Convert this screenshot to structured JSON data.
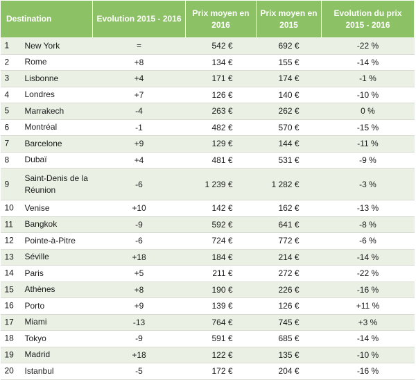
{
  "table": {
    "headers": {
      "destination": "Destination",
      "evolution": "Evolution 2015 - 2016",
      "price_2016": "Prix moyen en 2016",
      "price_2015": "Prix moyen en 2015",
      "price_evolution": "Evolution du prix 2015 - 2016"
    },
    "rows": [
      {
        "rank": "1",
        "destination": "New York",
        "evolution": "=",
        "price_2016": "542 €",
        "price_2015": "692 €",
        "price_evolution": "-22 %"
      },
      {
        "rank": "2",
        "destination": "Rome",
        "evolution": "+8",
        "price_2016": "134 €",
        "price_2015": "155 €",
        "price_evolution": "-14 %"
      },
      {
        "rank": "3",
        "destination": "Lisbonne",
        "evolution": "+4",
        "price_2016": "171 €",
        "price_2015": "174 €",
        "price_evolution": "-1 %"
      },
      {
        "rank": "4",
        "destination": "Londres",
        "evolution": "+7",
        "price_2016": "126 €",
        "price_2015": "140 €",
        "price_evolution": "-10 %"
      },
      {
        "rank": "5",
        "destination": "Marrakech",
        "evolution": "-4",
        "price_2016": "263 €",
        "price_2015": "262 €",
        "price_evolution": "0 %"
      },
      {
        "rank": "6",
        "destination": "Montréal",
        "evolution": "-1",
        "price_2016": "482 €",
        "price_2015": "570 €",
        "price_evolution": "-15 %"
      },
      {
        "rank": "7",
        "destination": "Barcelone",
        "evolution": "+9",
        "price_2016": "129 €",
        "price_2015": "144 €",
        "price_evolution": "-11 %"
      },
      {
        "rank": "8",
        "destination": "Dubaï",
        "evolution": "+4",
        "price_2016": "481 €",
        "price_2015": "531 €",
        "price_evolution": "-9 %"
      },
      {
        "rank": "9",
        "destination": "Saint-Denis de la Réunion",
        "evolution": "-6",
        "price_2016": "1 239 €",
        "price_2015": "1 282 €",
        "price_evolution": "-3 %"
      },
      {
        "rank": "10",
        "destination": "Venise",
        "evolution": "+10",
        "price_2016": "142 €",
        "price_2015": "162 €",
        "price_evolution": "-13 %"
      },
      {
        "rank": "11",
        "destination": "Bangkok",
        "evolution": "-9",
        "price_2016": "592 €",
        "price_2015": "641 €",
        "price_evolution": "-8 %"
      },
      {
        "rank": "12",
        "destination": "Pointe-à-Pitre",
        "evolution": "-6",
        "price_2016": "724 €",
        "price_2015": "772 €",
        "price_evolution": "-6 %"
      },
      {
        "rank": "13",
        "destination": "Séville",
        "evolution": "+18",
        "price_2016": "184 €",
        "price_2015": "214 €",
        "price_evolution": "-14 %"
      },
      {
        "rank": "14",
        "destination": "Paris",
        "evolution": "+5",
        "price_2016": "211 €",
        "price_2015": "272 €",
        "price_evolution": "-22 %"
      },
      {
        "rank": "15",
        "destination": "Athènes",
        "evolution": "+8",
        "price_2016": "190 €",
        "price_2015": "226 €",
        "price_evolution": "-16 %"
      },
      {
        "rank": "16",
        "destination": "Porto",
        "evolution": "+9",
        "price_2016": "139 €",
        "price_2015": "126 €",
        "price_evolution": "+11 %"
      },
      {
        "rank": "17",
        "destination": "Miami",
        "evolution": "-13",
        "price_2016": "764 €",
        "price_2015": "745 €",
        "price_evolution": "+3 %"
      },
      {
        "rank": "18",
        "destination": "Tokyo",
        "evolution": "-9",
        "price_2016": "591 €",
        "price_2015": "685 €",
        "price_evolution": "-14 %"
      },
      {
        "rank": "19",
        "destination": "Madrid",
        "evolution": "+18",
        "price_2016": "122 €",
        "price_2015": "135 €",
        "price_evolution": "-10 %"
      },
      {
        "rank": "20",
        "destination": "Istanbul",
        "evolution": "-5",
        "price_2016": "172 €",
        "price_2015": "204 €",
        "price_evolution": "-16 %"
      }
    ]
  },
  "colors": {
    "header_bg": "#8cc165",
    "header_text": "#ffffff",
    "shaded_row_bg": "#eaf1e4",
    "row_divider": "#d7dbd3"
  }
}
